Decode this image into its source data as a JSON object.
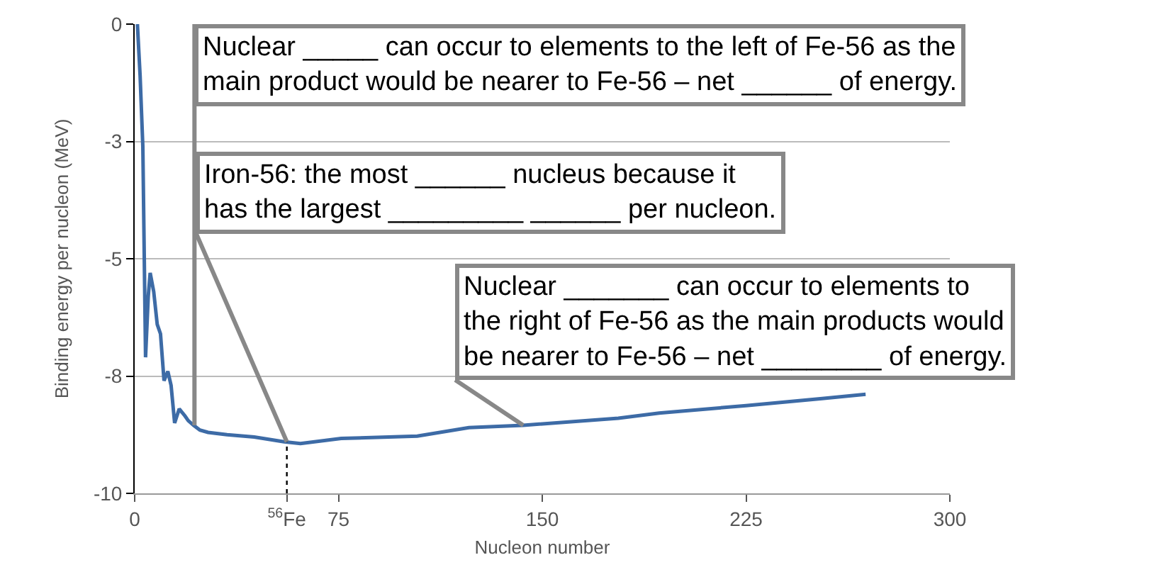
{
  "chart_data": {
    "type": "line",
    "xlabel": "Nucleon number",
    "ylabel": "Binding energy per nucleon (MeV)",
    "x": [
      1,
      2,
      3,
      4,
      5,
      5.7,
      7,
      8.3,
      9.5,
      10.8,
      12.2,
      13.4,
      14.7,
      16.4,
      18.5,
      19.7,
      21.7,
      24,
      27,
      34,
      44,
      55,
      61,
      76,
      104,
      123,
      143,
      178,
      193,
      225,
      253,
      269
    ],
    "series": [
      {
        "color": "#3d6ba6",
        "values": [
          0,
          -1.1,
          -2.6,
          -7.1,
          -5.8,
          -5.3,
          -5.7,
          -6.4,
          -6.6,
          -7.6,
          -7.4,
          -7.7,
          -8.5,
          -8.2,
          -8.35,
          -8.45,
          -8.55,
          -8.65,
          -8.7,
          -8.75,
          -8.8,
          -8.9,
          -8.94,
          -8.83,
          -8.78,
          -8.6,
          -8.55,
          -8.4,
          -8.29,
          -8.13,
          -7.98,
          -7.89
        ]
      }
    ],
    "xlim": [
      0,
      300
    ],
    "xticks": [
      0,
      {
        "value": 56,
        "label": "$^{56}$Fe"
      },
      75,
      150,
      225,
      300
    ],
    "ylim": [
      -10,
      0
    ],
    "yticks": [
      -10,
      {
        "value": -7.5,
        "label": "-8"
      },
      -5,
      {
        "value": -2.5,
        "label": "-3"
      },
      0
    ],
    "grid": "y",
    "marker": "none",
    "line_style": "solid",
    "ref_lines": [
      {
        "axis": "x",
        "value": 56,
        "line_style": "dotted",
        "color": "#000000"
      }
    ],
    "annotations": [
      {
        "text": "Nuclear _____ can occur to elements to the left of Fe-56 as the\nmain product would be nearer to Fe-56 – net ______ of energy.",
        "x": 22,
        "y": -8.55
      },
      {
        "text": "Iron-56: the most ______ nucleus because it\nhas the largest _________ ______ per nucleon.",
        "x": 56,
        "y": -8.9
      },
      {
        "text": "Nuclear _______ can occur to elements to\nthe right of Fe-56 as the main products would\nbe nearer to Fe-56 – net ________ of energy.",
        "x": 143,
        "y": -8.55
      }
    ]
  }
}
